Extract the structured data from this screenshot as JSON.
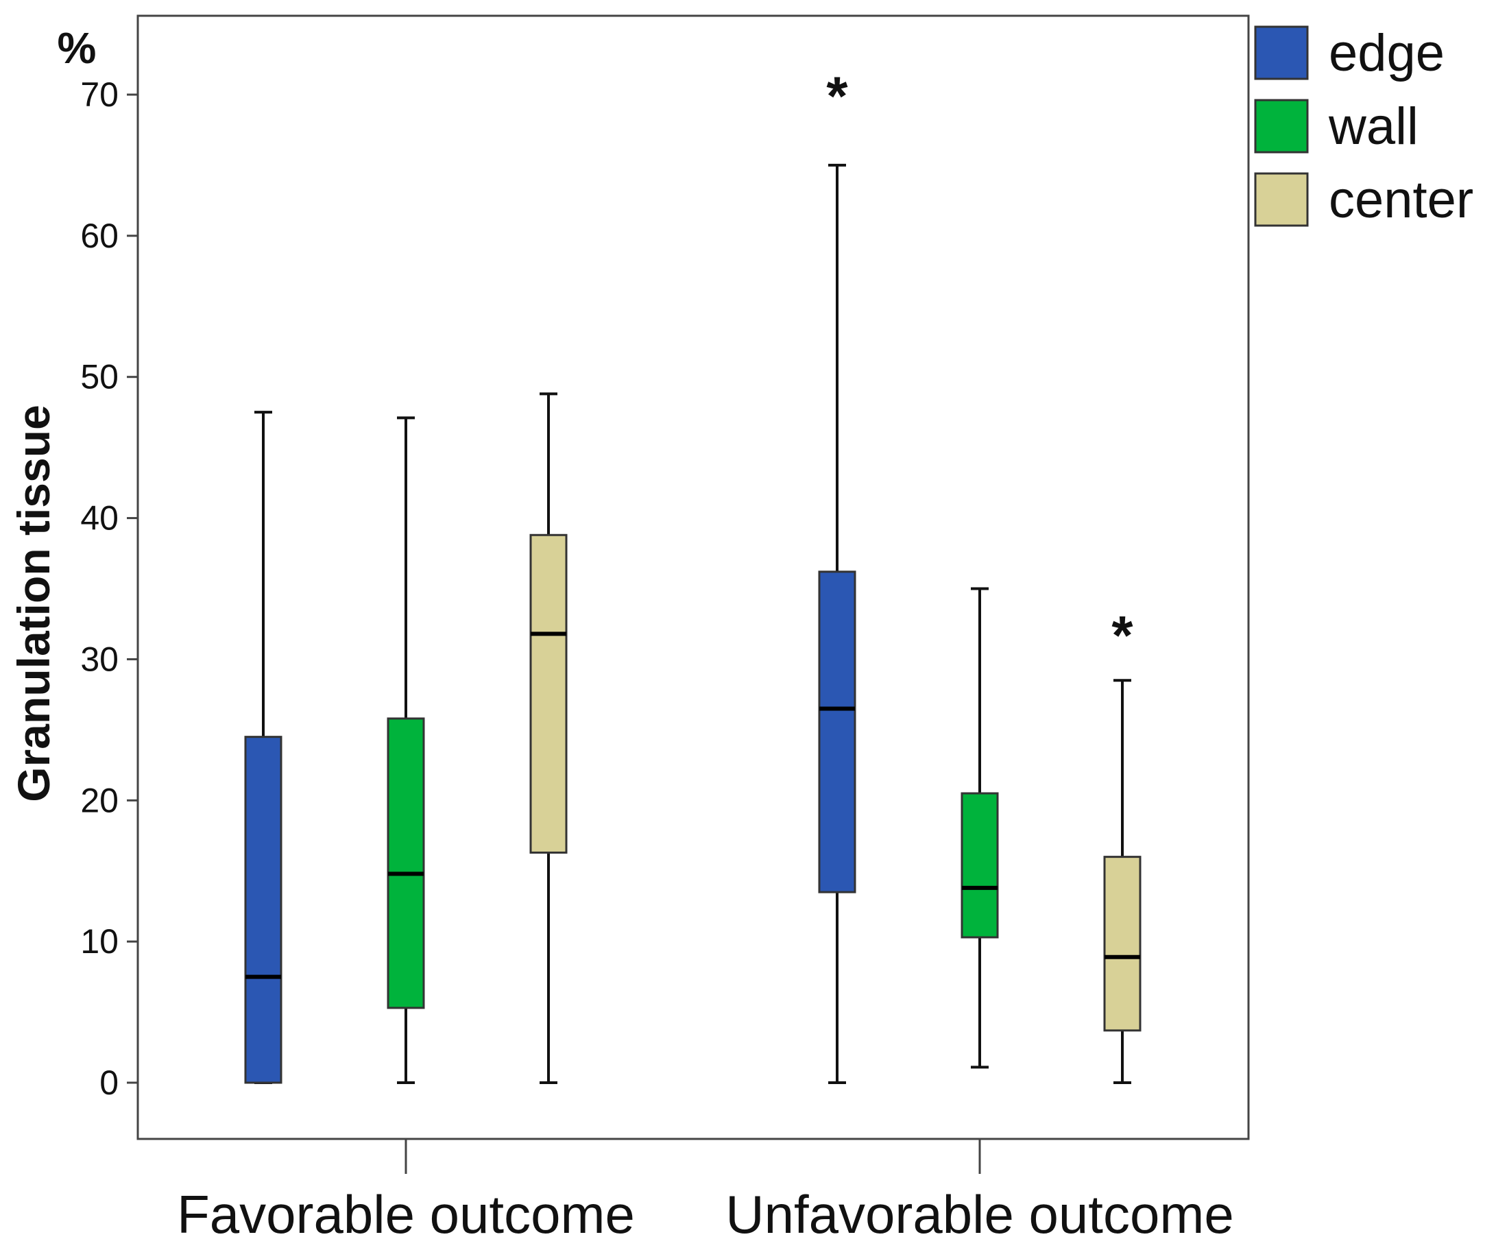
{
  "chart_data": {
    "type": "boxplot",
    "title": "",
    "xlabel": "",
    "ylabel": "Granulation tissue",
    "y_unit_label": "%",
    "ylim": [
      -4,
      76
    ],
    "yticks": [
      0,
      10,
      20,
      30,
      40,
      50,
      60,
      70
    ],
    "categories": [
      "Favorable outcome",
      "Unfavorable outcome"
    ],
    "legend_position": "top-right outside plot",
    "series": [
      {
        "name": "edge",
        "color": "#2b57b3",
        "boxes": [
          {
            "category": "Favorable outcome",
            "min": 0,
            "q1": 0,
            "median": 7.5,
            "q3": 24.5,
            "max": 47.5,
            "outliers": []
          },
          {
            "category": "Unfavorable outcome",
            "min": 0,
            "q1": 13.5,
            "median": 26.5,
            "q3": 36.2,
            "max": 65,
            "outliers": [
              {
                "value": 70.5,
                "marker": "*"
              }
            ]
          }
        ]
      },
      {
        "name": "wall",
        "color": "#00b33c",
        "boxes": [
          {
            "category": "Favorable outcome",
            "min": 0,
            "q1": 5.3,
            "median": 14.8,
            "q3": 25.8,
            "max": 47.1,
            "outliers": []
          },
          {
            "category": "Unfavorable outcome",
            "min": 1.1,
            "q1": 10.3,
            "median": 13.8,
            "q3": 20.5,
            "max": 35,
            "outliers": []
          }
        ]
      },
      {
        "name": "center",
        "color": "#d8d197",
        "boxes": [
          {
            "category": "Favorable outcome",
            "min": 0,
            "q1": 16.3,
            "median": 31.8,
            "q3": 38.8,
            "max": 48.8,
            "outliers": []
          },
          {
            "category": "Unfavorable outcome",
            "min": 0,
            "q1": 3.7,
            "median": 8.9,
            "q3": 16,
            "max": 28.5,
            "outliers": [
              {
                "value": 32.3,
                "marker": "*"
              }
            ]
          }
        ]
      }
    ]
  }
}
